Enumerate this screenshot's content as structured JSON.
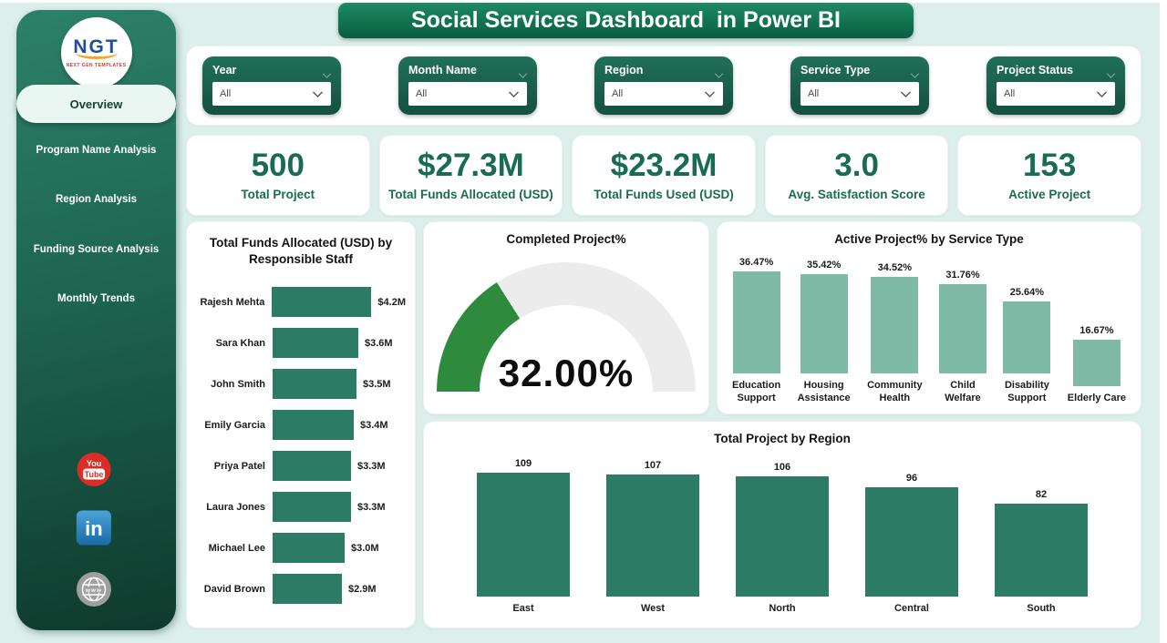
{
  "app": {
    "title": "Social Services Dashboard  in Power BI"
  },
  "theme": {
    "dark_green": "#1e6550",
    "bar_green": "#2b7b65",
    "sage_green": "#7fbaa7",
    "gauge_green": "#2e8b3e",
    "gauge_track": "#ececec",
    "kpi_text": "#1a6b53",
    "background": "#dcefeb"
  },
  "sidebar": {
    "logo": {
      "text": "NGT",
      "subtext": "NEXT GEN TEMPLATES"
    },
    "items": [
      {
        "label": "Overview",
        "active": true
      },
      {
        "label": "Program Name Analysis",
        "active": false
      },
      {
        "label": "Region Analysis",
        "active": false
      },
      {
        "label": "Funding Source Analysis",
        "active": false
      },
      {
        "label": "Monthly Trends",
        "active": false
      }
    ],
    "social": [
      {
        "name": "youtube",
        "line1": "You",
        "line2": "Tube"
      },
      {
        "name": "linkedin",
        "text": "in"
      },
      {
        "name": "website",
        "text": "www"
      }
    ]
  },
  "filters": [
    {
      "label": "Year",
      "value": "All"
    },
    {
      "label": "Month Name",
      "value": "All"
    },
    {
      "label": "Region",
      "value": "All"
    },
    {
      "label": "Service Type",
      "value": "All"
    },
    {
      "label": "Project Status",
      "value": "All"
    }
  ],
  "kpis": [
    {
      "value": "500",
      "label": "Total Project"
    },
    {
      "value": "$27.3M",
      "label": "Total Funds Allocated (USD)"
    },
    {
      "value": "$23.2M",
      "label": "Total Funds Used (USD)"
    },
    {
      "value": "3.0",
      "label": "Avg. Satisfaction Score"
    },
    {
      "value": "153",
      "label": "Active Project"
    }
  ],
  "chart_data": [
    {
      "id": "funds_by_staff",
      "type": "bar",
      "orientation": "horizontal",
      "title": "Total Funds Allocated (USD) by Responsible Staff",
      "categories": [
        "Rajesh Mehta",
        "Sara Khan",
        "John Smith",
        "Emily Garcia",
        "Priya Patel",
        "Laura Jones",
        "Michael Lee",
        "David Brown"
      ],
      "values": [
        4.2,
        3.6,
        3.5,
        3.4,
        3.3,
        3.3,
        3.0,
        2.9
      ],
      "labels": [
        "$4.2M",
        "$3.6M",
        "$3.5M",
        "$3.4M",
        "$3.3M",
        "$3.3M",
        "$3.0M",
        "$2.9M"
      ],
      "bar_color": "#2b7b65",
      "xlim": [
        0,
        4.2
      ],
      "grid": false,
      "legend": "none"
    },
    {
      "id": "completed_project_gauge",
      "type": "gauge",
      "title": "Completed Project%",
      "value": 32.0,
      "min": 0,
      "max": 100,
      "label": "32.00%",
      "fill_color": "#2e8b3e",
      "track_color": "#ececec"
    },
    {
      "id": "active_by_service_type",
      "type": "bar",
      "orientation": "vertical",
      "title": "Active Project% by Service Type",
      "categories": [
        "Education\nSupport",
        "Housing\nAssistance",
        "Community\nHealth",
        "Child\nWelfare",
        "Disability\nSupport",
        "Elderly Care"
      ],
      "values": [
        36.47,
        35.42,
        34.52,
        31.76,
        25.64,
        16.67
      ],
      "labels": [
        "36.47%",
        "35.42%",
        "34.52%",
        "31.76%",
        "25.64%",
        "16.67%"
      ],
      "bar_color": "#7fbaa7",
      "ylim": [
        0,
        36.47
      ],
      "grid": false,
      "legend": "none"
    },
    {
      "id": "total_project_by_region",
      "type": "bar",
      "orientation": "vertical",
      "title": "Total Project by Region",
      "categories": [
        "East",
        "West",
        "North",
        "Central",
        "South"
      ],
      "values": [
        109,
        107,
        106,
        96,
        82
      ],
      "labels": [
        "109",
        "107",
        "106",
        "96",
        "82"
      ],
      "bar_color": "#2b7b65",
      "ylim": [
        0,
        109
      ],
      "grid": false,
      "legend": "none"
    }
  ]
}
